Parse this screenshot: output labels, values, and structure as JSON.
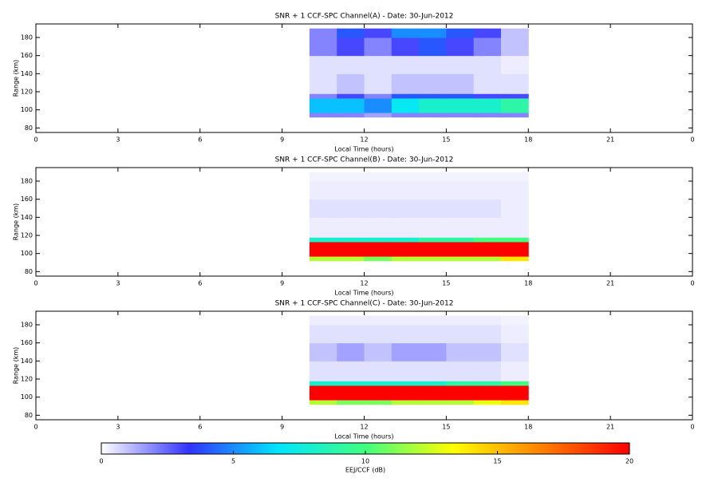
{
  "chart_data": [
    {
      "type": "heatmap",
      "title": "SNR + 1 CCF-SPC Channel(A) - Date: 30-Jun-2012",
      "xlabel": "Local Time (hours)",
      "ylabel": "Range (km)",
      "xlim": [
        0,
        24
      ],
      "ylim": [
        75,
        195
      ],
      "xticks": [
        0,
        3,
        6,
        9,
        12,
        15,
        18,
        21,
        {
          "value": 24,
          "label": "0"
        }
      ],
      "yticks": [
        80,
        100,
        120,
        140,
        160,
        180
      ],
      "x_edges": [
        10,
        11,
        12,
        13,
        14,
        15,
        16,
        17,
        18
      ],
      "y_edges": [
        92,
        97,
        113,
        118,
        140,
        160,
        180,
        190
      ],
      "values": [
        [
          2,
          2,
          1.5,
          2,
          2,
          2,
          2,
          2
        ],
        [
          6,
          6,
          5,
          7,
          8,
          8,
          8,
          9
        ],
        [
          2,
          3,
          2,
          4,
          4,
          4,
          3,
          3
        ],
        [
          0.5,
          1,
          0.5,
          1,
          1,
          1,
          0.5,
          0.5
        ],
        [
          0.5,
          0.5,
          0.5,
          0.5,
          0.5,
          0.5,
          0.5,
          0.3
        ],
        [
          2,
          3,
          2,
          3,
          4,
          3,
          2,
          1
        ],
        [
          2,
          4,
          3,
          5,
          5,
          4,
          3,
          1
        ]
      ]
    },
    {
      "type": "heatmap",
      "title": "SNR + 1 CCF-SPC Channel(B) - Date: 30-Jun-2012",
      "xlabel": "Local Time (hours)",
      "ylabel": "Range (km)",
      "xlim": [
        0,
        24
      ],
      "ylim": [
        75,
        195
      ],
      "xticks": [
        0,
        3,
        6,
        9,
        12,
        15,
        18,
        21,
        {
          "value": 24,
          "label": "0"
        }
      ],
      "yticks": [
        80,
        100,
        120,
        140,
        160,
        180
      ],
      "x_edges": [
        10,
        11,
        12,
        13,
        14,
        15,
        16,
        17,
        18
      ],
      "y_edges": [
        92,
        97,
        113,
        118,
        140,
        160,
        180,
        190
      ],
      "values": [
        [
          12,
          12,
          11,
          12,
          12,
          12,
          12,
          14
        ],
        [
          20,
          20,
          20,
          20,
          20,
          20,
          20,
          20
        ],
        [
          8,
          8,
          8,
          8,
          9,
          9,
          10,
          10
        ],
        [
          0.3,
          0.3,
          0.3,
          0.3,
          0.3,
          0.3,
          0.3,
          0.3
        ],
        [
          0.5,
          0.5,
          0.5,
          0.5,
          0.5,
          0.5,
          0.5,
          0.3
        ],
        [
          0.3,
          0.3,
          0.3,
          0.3,
          0.3,
          0.3,
          0.3,
          0.3
        ],
        [
          0.2,
          0.2,
          0.2,
          0.2,
          0.2,
          0.2,
          0.2,
          0.2
        ]
      ]
    },
    {
      "type": "heatmap",
      "title": "SNR + 1 CCF-SPC Channel(C) - Date: 30-Jun-2012",
      "xlabel": "Local Time (hours)",
      "ylabel": "Range (km)",
      "xlim": [
        0,
        24
      ],
      "ylim": [
        75,
        195
      ],
      "xticks": [
        0,
        3,
        6,
        9,
        12,
        15,
        18,
        21,
        {
          "value": 24,
          "label": "0"
        }
      ],
      "yticks": [
        80,
        100,
        120,
        140,
        160,
        180
      ],
      "x_edges": [
        10,
        11,
        12,
        13,
        14,
        15,
        16,
        17,
        18
      ],
      "y_edges": [
        92,
        97,
        113,
        118,
        140,
        160,
        180,
        190
      ],
      "values": [
        [
          12,
          11,
          11,
          12,
          12,
          12,
          13,
          14
        ],
        [
          20,
          20,
          20,
          20,
          20,
          20,
          20,
          20
        ],
        [
          8,
          8,
          8,
          8,
          8,
          9,
          9,
          10
        ],
        [
          0.5,
          0.5,
          0.5,
          0.5,
          0.5,
          0.5,
          0.5,
          0.3
        ],
        [
          1,
          1.5,
          1,
          1.5,
          1.5,
          1,
          1,
          0.5
        ],
        [
          0.5,
          0.5,
          0.5,
          0.5,
          0.5,
          0.5,
          0.5,
          0.3
        ],
        [
          0.3,
          0.3,
          0.3,
          0.3,
          0.3,
          0.3,
          0.3,
          0.2
        ]
      ]
    },
    {
      "type": "colorbar",
      "label": "EEJ/CCF (dB)",
      "lim": [
        0,
        20
      ],
      "ticks": [
        0,
        5,
        10,
        15,
        20
      ],
      "colormap": [
        "#ffffff",
        "#3232ff",
        "#00e5ff",
        "#40ff80",
        "#ffff00",
        "#ff8000",
        "#ff0000"
      ]
    }
  ]
}
